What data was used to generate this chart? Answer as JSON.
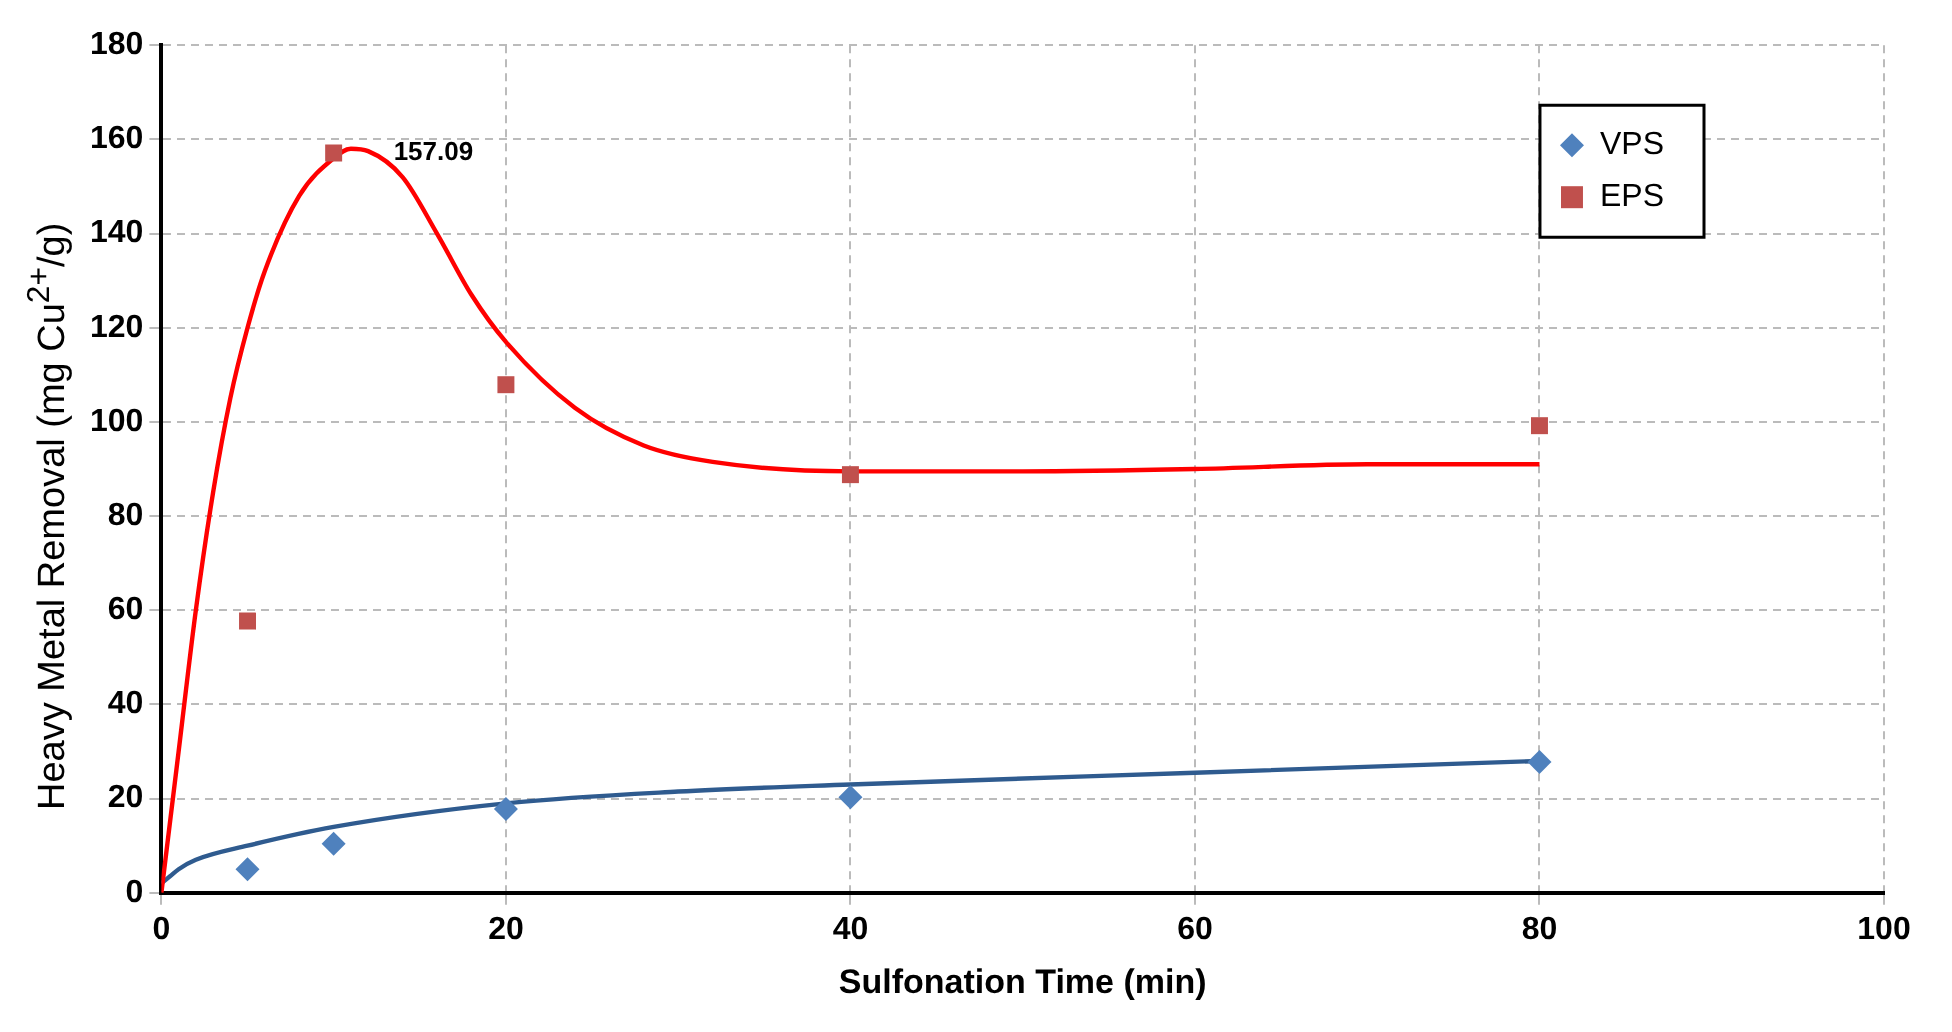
{
  "chart_data": {
    "type": "scatter",
    "xlabel": "Sulfonation Time (min)",
    "ylabel": "Heavy Metal Removal (mg Cu$^{2+}$/g)",
    "xlim": [
      0,
      100
    ],
    "xticks": [
      0,
      20,
      40,
      60,
      80,
      100
    ],
    "ylim": [
      0,
      180
    ],
    "yticks": [
      0,
      20,
      40,
      60,
      80,
      100,
      120,
      140,
      160,
      180
    ],
    "grid": true,
    "legend": "top right",
    "annotations": [
      {
        "text": "157.09",
        "x": 10,
        "y": 157.09
      }
    ],
    "series": [
      {
        "name": "VPS",
        "type": "scatter",
        "marker": "diamond",
        "color": "#4f81bd",
        "x": [
          5,
          10,
          20,
          40,
          80
        ],
        "values": [
          5,
          10.4,
          17.8,
          20.3,
          27.8
        ]
      },
      {
        "name": "EPS",
        "type": "scatter",
        "marker": "square",
        "color": "#c0504d",
        "x": [
          5,
          10,
          20,
          40,
          80
        ],
        "values": [
          57.7,
          157.09,
          107.9,
          88.8,
          99.2
        ]
      },
      {
        "type": "line",
        "marker": "none",
        "color": "#ff0000",
        "x": [
          0,
          1,
          2,
          3,
          4,
          5,
          6,
          8,
          10,
          11,
          12,
          14,
          16,
          18,
          20,
          24,
          28,
          32,
          40,
          50,
          60,
          70,
          80
        ],
        "values": [
          0,
          30,
          60,
          85,
          105,
          120,
          132,
          148,
          156,
          158,
          157.5,
          152,
          140,
          127,
          117,
          103,
          95,
          91.5,
          89.5,
          89.5,
          90,
          91,
          91
        ]
      },
      {
        "type": "line",
        "marker": "none",
        "color": "#2f5b8f",
        "x": [
          0,
          0.5,
          1,
          2,
          5,
          10,
          20,
          30,
          40,
          60,
          80
        ],
        "values": [
          2,
          3.5,
          5,
          7,
          10,
          14,
          19,
          21.5,
          23,
          25.5,
          28
        ]
      }
    ]
  }
}
